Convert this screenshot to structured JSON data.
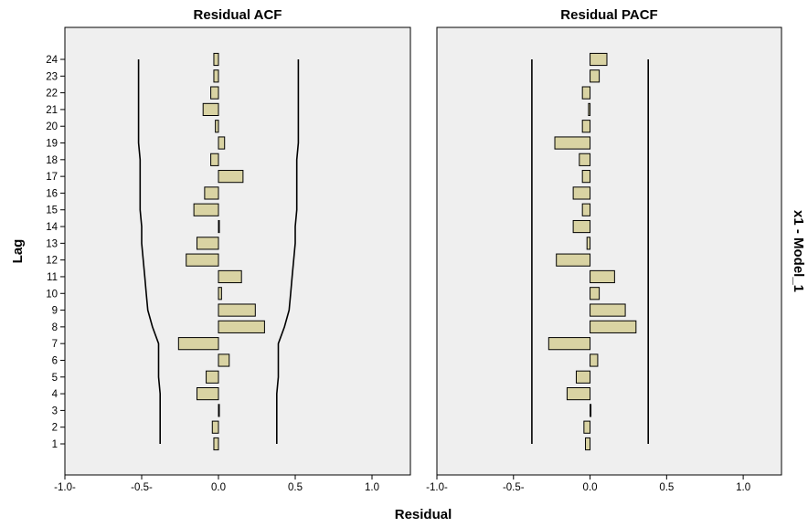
{
  "chart_data": {
    "type": "bar",
    "orientation": "horizontal",
    "panels": [
      {
        "title": "Residual ACF",
        "lags": [
          1,
          2,
          3,
          4,
          5,
          6,
          7,
          8,
          9,
          10,
          11,
          12,
          13,
          14,
          15,
          16,
          17,
          18,
          19,
          20,
          21,
          22,
          23,
          24
        ],
        "values": [
          -0.03,
          -0.04,
          0.0,
          -0.14,
          -0.08,
          0.07,
          -0.26,
          0.3,
          0.24,
          0.02,
          0.15,
          -0.21,
          -0.14,
          0.0,
          -0.16,
          -0.09,
          0.16,
          -0.05,
          0.04,
          -0.02,
          -0.1,
          -0.05,
          -0.03,
          -0.03
        ],
        "upper_conf": [
          0.38,
          0.38,
          0.38,
          0.38,
          0.39,
          0.39,
          0.39,
          0.43,
          0.46,
          0.47,
          0.48,
          0.49,
          0.5,
          0.5,
          0.51,
          0.51,
          0.51,
          0.51,
          0.52,
          0.52,
          0.52,
          0.52,
          0.52,
          0.52
        ],
        "lower_conf": [
          -0.38,
          -0.38,
          -0.38,
          -0.38,
          -0.39,
          -0.39,
          -0.39,
          -0.43,
          -0.46,
          -0.47,
          -0.48,
          -0.49,
          -0.5,
          -0.5,
          -0.51,
          -0.51,
          -0.51,
          -0.51,
          -0.52,
          -0.52,
          -0.52,
          -0.52,
          -0.52,
          -0.52
        ]
      },
      {
        "title": "Residual PACF",
        "lags": [
          1,
          2,
          3,
          4,
          5,
          6,
          7,
          8,
          9,
          10,
          11,
          12,
          13,
          14,
          15,
          16,
          17,
          18,
          19,
          20,
          21,
          22,
          23,
          24
        ],
        "values": [
          -0.03,
          -0.04,
          0.0,
          -0.15,
          -0.09,
          0.05,
          -0.27,
          0.3,
          0.23,
          0.06,
          0.16,
          -0.22,
          -0.02,
          -0.11,
          -0.05,
          -0.11,
          -0.05,
          -0.07,
          -0.23,
          -0.05,
          -0.01,
          -0.05,
          0.06,
          0.11
        ],
        "upper_conf": [
          0.38,
          0.38,
          0.38,
          0.38,
          0.38,
          0.38,
          0.38,
          0.38,
          0.38,
          0.38,
          0.38,
          0.38,
          0.38,
          0.38,
          0.38,
          0.38,
          0.38,
          0.38,
          0.38,
          0.38,
          0.38,
          0.38,
          0.38,
          0.38
        ],
        "lower_conf": [
          -0.38,
          -0.38,
          -0.38,
          -0.38,
          -0.38,
          -0.38,
          -0.38,
          -0.38,
          -0.38,
          -0.38,
          -0.38,
          -0.38,
          -0.38,
          -0.38,
          -0.38,
          -0.38,
          -0.38,
          -0.38,
          -0.38,
          -0.38,
          -0.38,
          -0.38,
          -0.38,
          -0.38
        ]
      }
    ],
    "xlabel": "Residual",
    "ylabel": "Lag",
    "side_label": "x1 - Model_1",
    "xlim": [
      -1.0,
      1.25
    ],
    "xticks": [
      -1.0,
      -0.5,
      0.0,
      0.5,
      1.0
    ],
    "xtick_labels": [
      "-1.0-",
      "-0.5-",
      "0.0",
      "0.5",
      "1.0"
    ],
    "grid": false,
    "colors": {
      "bar": "#d9d3a3",
      "panel": "#efefef",
      "line": "#000000"
    }
  }
}
